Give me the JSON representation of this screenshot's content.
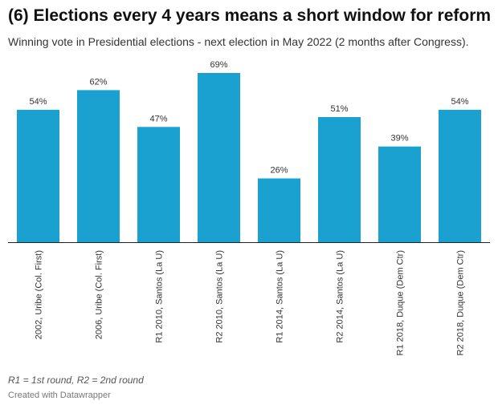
{
  "header": {
    "title": "(6) Elections every 4 years means a short window for reform",
    "subtitle": "Winning vote in Presidential elections - next election in May 2022 (2 months after Congress)."
  },
  "footer": {
    "notes": "R1 = 1st round, R2 = 2nd round",
    "credit": "Created with Datawrapper"
  },
  "colors": {
    "bar": "#1aa1cf",
    "baseline": "#222222"
  },
  "chart_data": {
    "type": "bar",
    "categories": [
      "2002, Uribe (Col. First)",
      "2006, Uribe (Col. First)",
      "R1 2010, Santos (La U)",
      "R2 2010, Santos (La U)",
      "R1 2014, Santos (La U)",
      "R2 2014, Santos (La U)",
      "R1 2018, Duque (Dem Ctr)",
      "R2 2018, Duque (Dem Ctr)"
    ],
    "values": [
      54,
      62,
      47,
      69,
      26,
      51,
      39,
      54
    ],
    "value_labels": [
      "54%",
      "62%",
      "47%",
      "69%",
      "26%",
      "51%",
      "39%",
      "54%"
    ],
    "ylim": [
      0,
      69
    ],
    "grid": false,
    "title": "(6) Elections every 4 years means a short window for reform",
    "xlabel": "",
    "ylabel": ""
  }
}
